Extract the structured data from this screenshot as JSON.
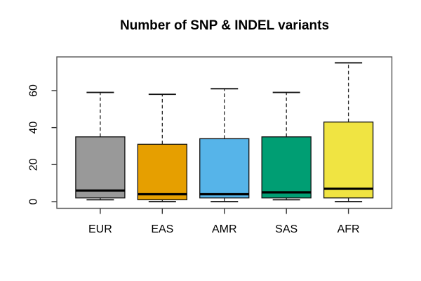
{
  "chart_data": {
    "type": "boxplot",
    "title": "Number of SNP & INDEL variants",
    "categories": [
      "EUR",
      "EAS",
      "AMR",
      "SAS",
      "AFR"
    ],
    "xlabel": "",
    "ylabel": "",
    "yticks": [
      0,
      20,
      40,
      60
    ],
    "ylim": [
      -3.6,
      78.2
    ],
    "xlim": [
      0.3,
      5.7
    ],
    "grid": false,
    "legend": "none",
    "axis_color": "#333333",
    "frame_color": "#555555",
    "box_border_color": "#111111",
    "median_color": "#000000",
    "boxes": [
      {
        "label": "EUR",
        "color": "#999999",
        "whisker_low": 1,
        "q1": 2,
        "median": 6,
        "q3": 35,
        "whisker_high": 59
      },
      {
        "label": "EAS",
        "color": "#E69F00",
        "whisker_low": 0,
        "q1": 1,
        "median": 4,
        "q3": 31,
        "whisker_high": 58
      },
      {
        "label": "AMR",
        "color": "#56B4E9",
        "whisker_low": 0,
        "q1": 2,
        "median": 4,
        "q3": 34,
        "whisker_high": 61
      },
      {
        "label": "SAS",
        "color": "#009E73",
        "whisker_low": 1,
        "q1": 2,
        "median": 5,
        "q3": 35,
        "whisker_high": 59
      },
      {
        "label": "AFR",
        "color": "#F0E442",
        "whisker_low": 0,
        "q1": 2,
        "median": 7,
        "q3": 43,
        "whisker_high": 75
      }
    ]
  }
}
